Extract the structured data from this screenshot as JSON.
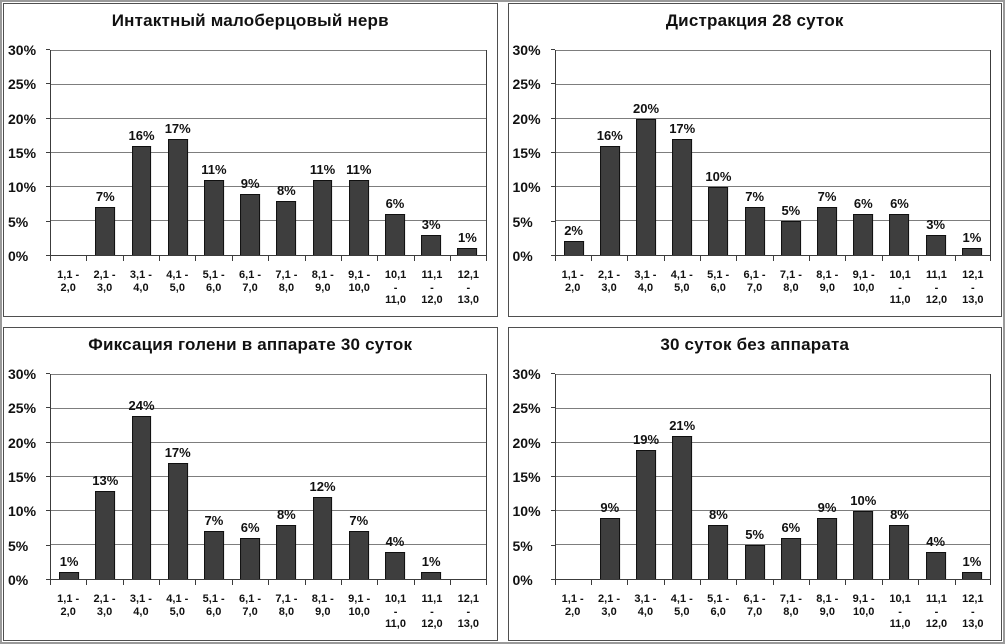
{
  "colors": {
    "bar": "#3e3e3e",
    "bar_border": "#101010",
    "grid": "#7d7d7d",
    "axis": "#3c3c3c",
    "panel_border": "#4f4f4f",
    "outer_border": "#9a9a9a",
    "text": "#111111"
  },
  "axis": {
    "ylim": [
      0,
      30
    ],
    "grid": true,
    "y_tick_step": 5,
    "y_tick_labels": [
      "0%",
      "5%",
      "10%",
      "15%",
      "20%",
      "25%",
      "30%"
    ],
    "categories": [
      "1,1 - 2,0",
      "2,1 - 3,0",
      "3,1 - 4,0",
      "4,1 - 5,0",
      "5,1 - 6,0",
      "6,1 - 7,0",
      "7,1 - 8,0",
      "8,1 - 9,0",
      "9,1 - 10,0",
      "10,1 - 11,0",
      "11,1 - 12,0",
      "12,1 - 13,0"
    ],
    "category_lines": [
      [
        "1,1 -",
        "2,0"
      ],
      [
        "2,1 -",
        "3,0"
      ],
      [
        "3,1 -",
        "4,0"
      ],
      [
        "4,1 -",
        "5,0"
      ],
      [
        "5,1 -",
        "6,0"
      ],
      [
        "6,1 -",
        "7,0"
      ],
      [
        "7,1 -",
        "8,0"
      ],
      [
        "8,1 -",
        "9,0"
      ],
      [
        "9,1 -",
        "10,0"
      ],
      [
        "10,1",
        "-",
        "11,0"
      ],
      [
        "11,1",
        "-",
        "12,0"
      ],
      [
        "12,1",
        "-",
        "13,0"
      ]
    ]
  },
  "chart_data": [
    {
      "type": "bar",
      "title": "Интактный малоберцовый нерв",
      "values": [
        0,
        7,
        16,
        17,
        11,
        9,
        8,
        11,
        11,
        6,
        3,
        1
      ],
      "bar_labels": [
        "",
        "7%",
        "16%",
        "17%",
        "11%",
        "9%",
        "8%",
        "11%",
        "11%",
        "6%",
        "3%",
        "1%"
      ]
    },
    {
      "type": "bar",
      "title": "Дистракция 28 суток",
      "values": [
        2,
        16,
        20,
        17,
        10,
        7,
        5,
        7,
        6,
        6,
        3,
        1
      ],
      "bar_labels": [
        "2%",
        "16%",
        "20%",
        "17%",
        "10%",
        "7%",
        "5%",
        "7%",
        "6%",
        "6%",
        "3%",
        "1%"
      ]
    },
    {
      "type": "bar",
      "title": "Фиксация голени в аппарате 30 суток",
      "values": [
        1,
        13,
        24,
        17,
        7,
        6,
        8,
        12,
        7,
        4,
        1,
        0
      ],
      "bar_labels": [
        "1%",
        "13%",
        "24%",
        "17%",
        "7%",
        "6%",
        "8%",
        "12%",
        "7%",
        "4%",
        "1%",
        ""
      ]
    },
    {
      "type": "bar",
      "title": "30 суток без аппарата",
      "values": [
        0,
        9,
        19,
        21,
        8,
        5,
        6,
        9,
        10,
        8,
        4,
        1
      ],
      "bar_labels": [
        "",
        "9%",
        "19%",
        "21%",
        "8%",
        "5%",
        "6%",
        "9%",
        "10%",
        "8%",
        "4%",
        "1%"
      ]
    }
  ]
}
